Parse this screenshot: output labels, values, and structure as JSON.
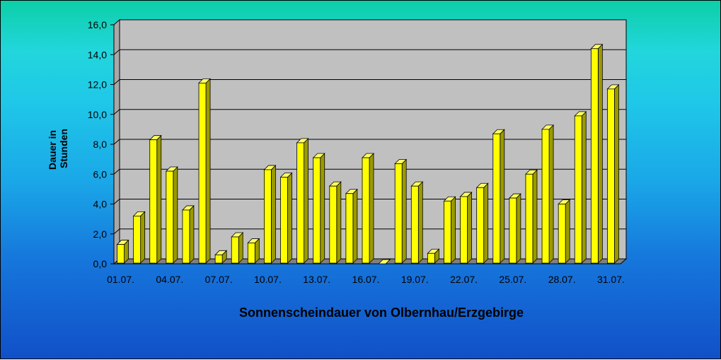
{
  "chart_data": {
    "type": "bar",
    "title": "Sonnenscheindauer von Olbernhau/Erzgebirge",
    "xlabel": "",
    "ylabel_lines": [
      "Dauer in",
      "Stunden"
    ],
    "ylim": [
      0,
      16
    ],
    "yticks": [
      "0,0",
      "2,0",
      "4,0",
      "6,0",
      "8,0",
      "10,0",
      "12,0",
      "14,0",
      "16,0"
    ],
    "categories": [
      "01.07.",
      "02.07.",
      "03.07.",
      "04.07.",
      "05.07.",
      "06.07.",
      "07.07.",
      "08.07.",
      "09.07.",
      "10.07.",
      "11.07.",
      "12.07.",
      "13.07.",
      "14.07.",
      "15.07.",
      "16.07.",
      "17.07.",
      "18.07.",
      "19.07.",
      "20.07.",
      "21.07.",
      "22.07.",
      "23.07.",
      "24.07.",
      "25.07.",
      "26.07.",
      "27.07.",
      "28.07.",
      "29.07.",
      "30.07.",
      "31.07."
    ],
    "shown_tick_labels": [
      "01.07.",
      "04.07.",
      "07.07.",
      "10.07.",
      "13.07.",
      "16.07.",
      "19.07.",
      "22.07.",
      "25.07.",
      "28.07.",
      "31.07."
    ],
    "values": [
      1.3,
      3.2,
      8.3,
      6.2,
      3.6,
      12.1,
      0.6,
      1.8,
      1.4,
      6.3,
      5.8,
      8.1,
      7.1,
      5.2,
      4.7,
      7.1,
      0.0,
      6.7,
      5.2,
      0.7,
      4.2,
      4.5,
      5.1,
      8.7,
      4.4,
      6.0,
      9.0,
      4.0,
      9.9,
      14.4,
      11.7
    ],
    "grid": true,
    "legend": "none",
    "colors": {
      "bar_front": "#ffff00",
      "bar_side": "#9a9a00",
      "bar_top": "#ffff66",
      "plot_back": "#c0c0c0",
      "plot_floor": "#808080"
    }
  }
}
